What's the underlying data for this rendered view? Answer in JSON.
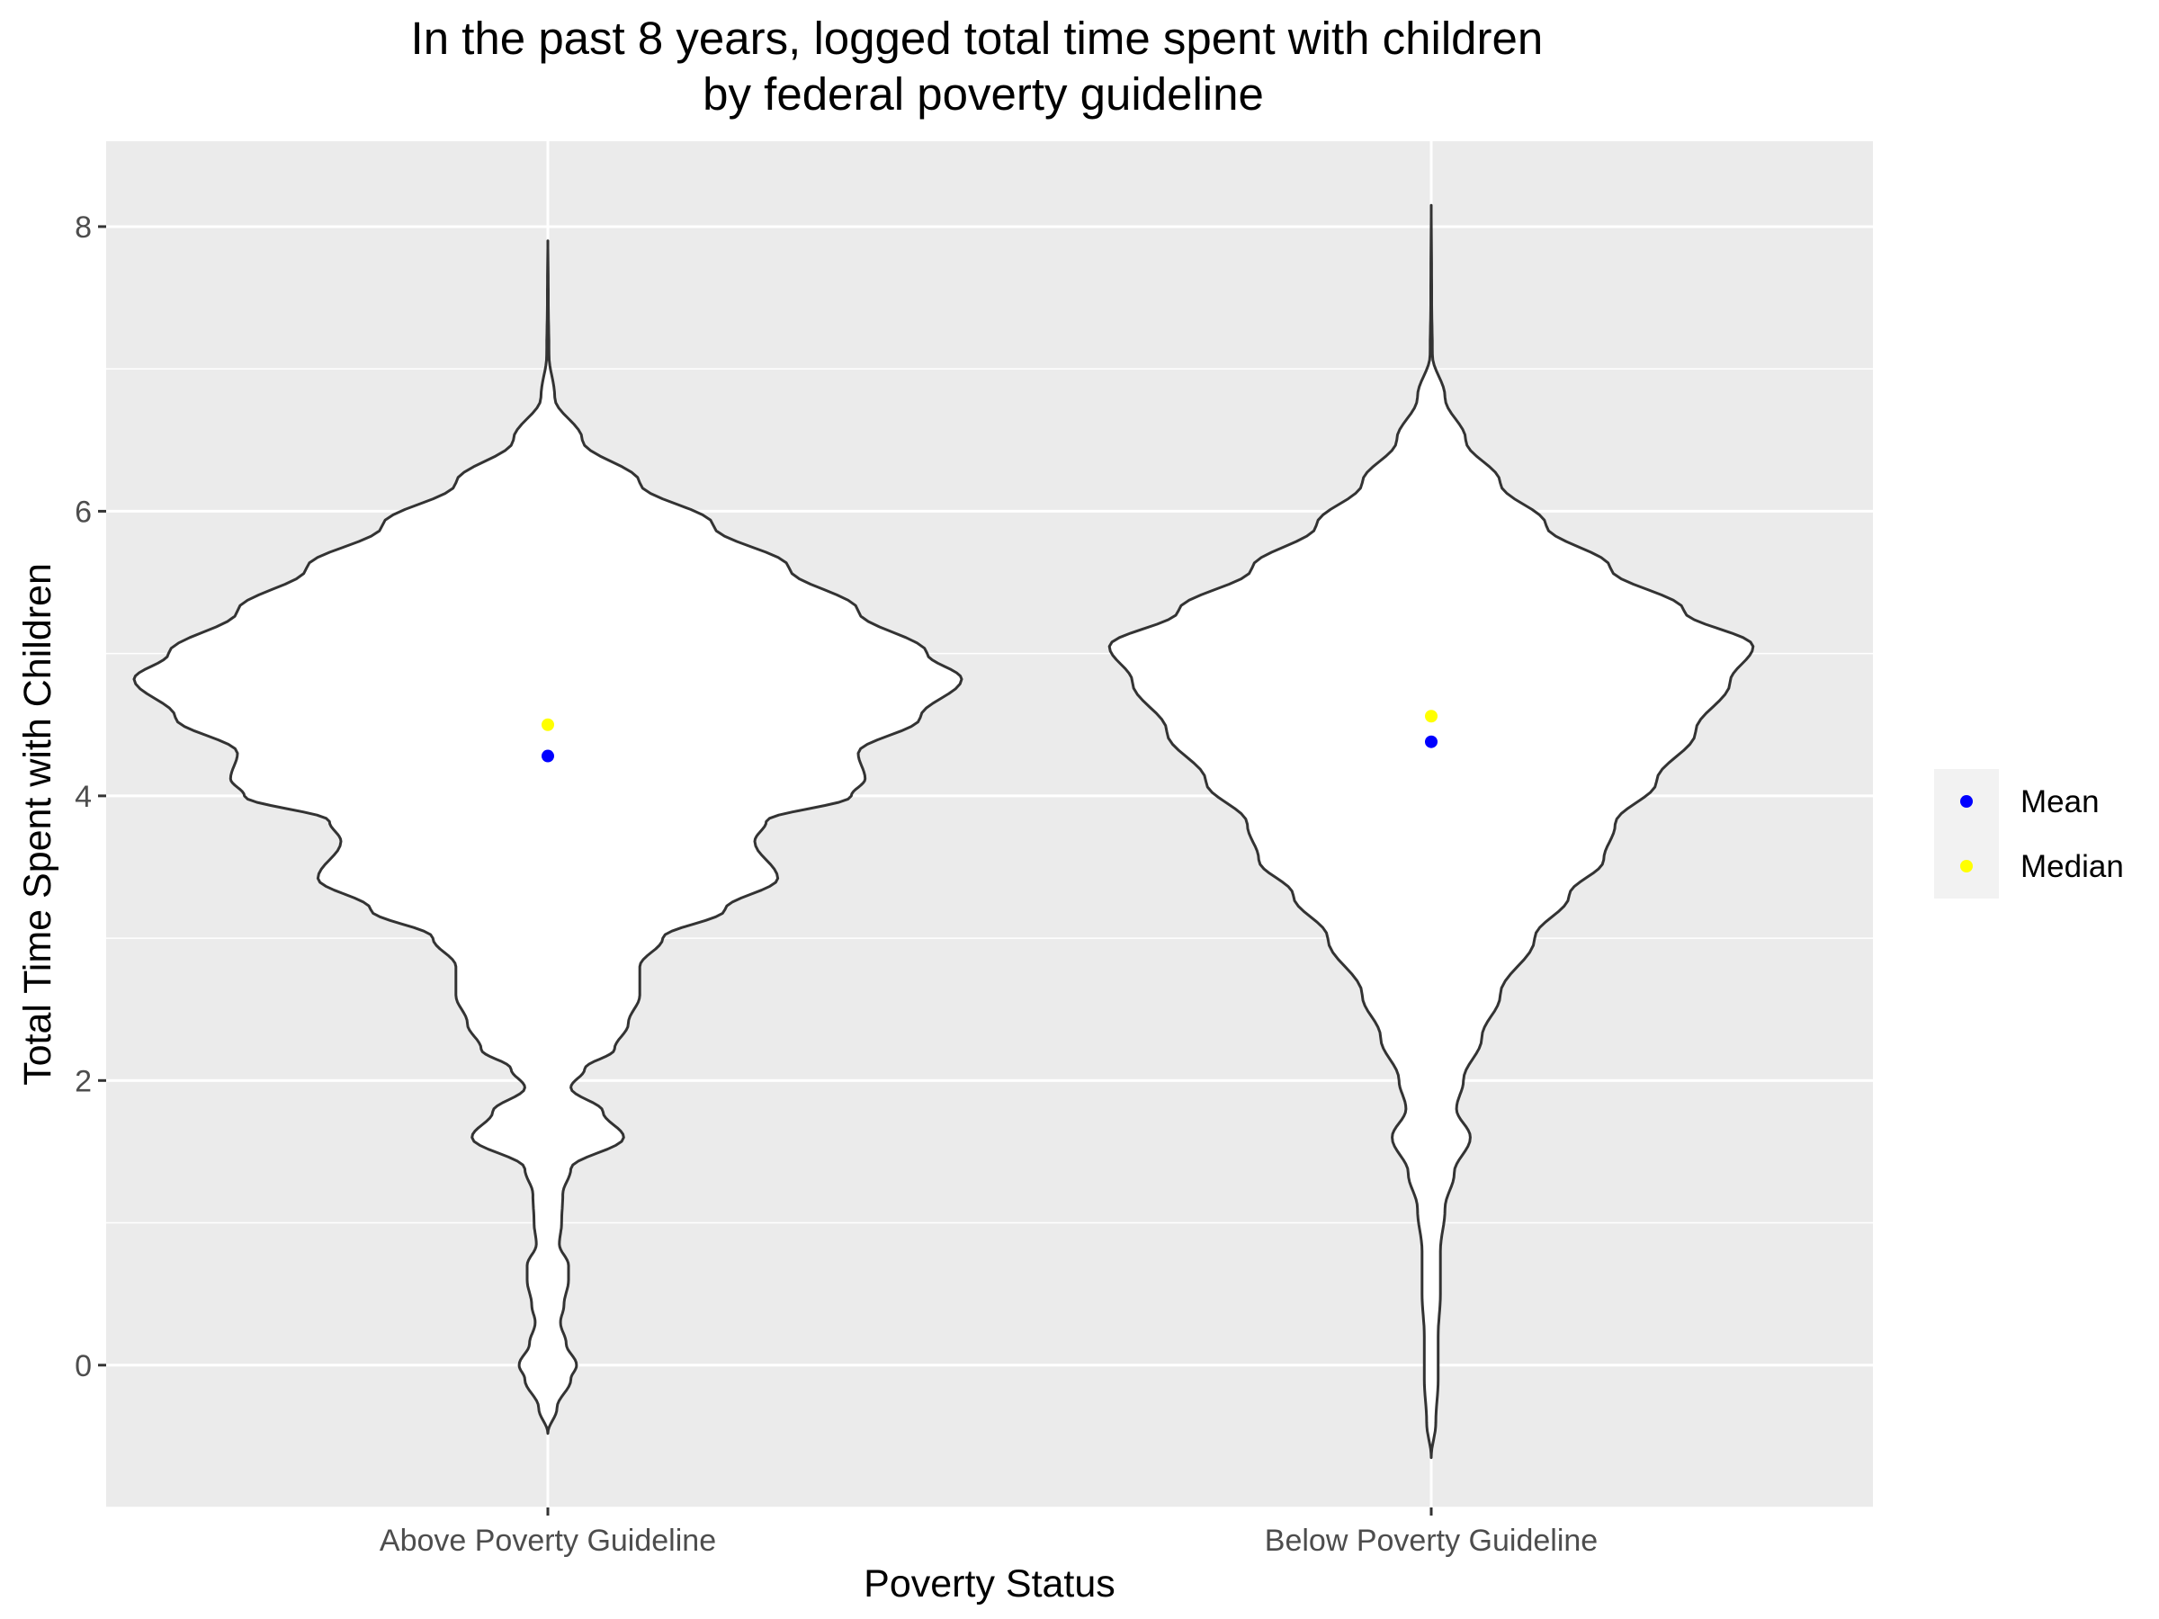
{
  "chart_data": {
    "type": "violin",
    "title": "In the past 8 years, logged total time spent with children\nby federal poverty guideline",
    "xlabel": "Poverty Status",
    "ylabel": "Total Time Spent with Children",
    "categories": [
      "Above Poverty Guideline",
      "Below Poverty Guideline"
    ],
    "ylim": [
      -1.0,
      8.6
    ],
    "yticks": [
      0,
      2,
      4,
      6,
      8
    ],
    "grid": true,
    "legend_position": "right",
    "colors": {
      "panel": "#ebebeb",
      "grid": "#ffffff",
      "violin_fill": "#ffffff",
      "violin_outline": "#333333",
      "mean": "#0000ff",
      "median": "#ffff00"
    },
    "summary_points": [
      {
        "name": "Mean",
        "values": [
          4.28,
          4.38
        ]
      },
      {
        "name": "Median",
        "values": [
          4.5,
          4.56
        ]
      }
    ],
    "density": [
      {
        "category": "Above Poverty Guideline",
        "profile": [
          [
            -0.48,
            0.0
          ],
          [
            -0.3,
            0.04
          ],
          [
            -0.1,
            0.1
          ],
          [
            0.0,
            0.125
          ],
          [
            0.15,
            0.08
          ],
          [
            0.3,
            0.055
          ],
          [
            0.42,
            0.07
          ],
          [
            0.6,
            0.09
          ],
          [
            0.7,
            0.09
          ],
          [
            0.85,
            0.05
          ],
          [
            1.0,
            0.06
          ],
          [
            1.2,
            0.065
          ],
          [
            1.38,
            0.1
          ],
          [
            1.6,
            0.33
          ],
          [
            1.78,
            0.24
          ],
          [
            1.95,
            0.1
          ],
          [
            2.08,
            0.16
          ],
          [
            2.22,
            0.29
          ],
          [
            2.4,
            0.35
          ],
          [
            2.6,
            0.4
          ],
          [
            2.8,
            0.4
          ],
          [
            3.0,
            0.5
          ],
          [
            3.2,
            0.77
          ],
          [
            3.42,
            1.0
          ],
          [
            3.68,
            0.9
          ],
          [
            3.82,
            0.95
          ],
          [
            4.0,
            1.32
          ],
          [
            4.12,
            1.38
          ],
          [
            4.3,
            1.35
          ],
          [
            4.55,
            1.62
          ],
          [
            4.82,
            1.8
          ],
          [
            5.0,
            1.65
          ],
          [
            5.3,
            1.35
          ],
          [
            5.6,
            1.05
          ],
          [
            5.9,
            0.72
          ],
          [
            6.2,
            0.4
          ],
          [
            6.5,
            0.15
          ],
          [
            6.8,
            0.03
          ],
          [
            7.1,
            0.005
          ],
          [
            7.5,
            0.002
          ],
          [
            7.9,
            0.0
          ]
        ]
      },
      {
        "category": "Below Poverty Guideline",
        "profile": [
          [
            -0.65,
            0.0
          ],
          [
            -0.4,
            0.02
          ],
          [
            -0.1,
            0.03
          ],
          [
            0.2,
            0.03
          ],
          [
            0.5,
            0.04
          ],
          [
            0.8,
            0.04
          ],
          [
            1.1,
            0.06
          ],
          [
            1.35,
            0.1
          ],
          [
            1.6,
            0.17
          ],
          [
            1.8,
            0.11
          ],
          [
            2.0,
            0.14
          ],
          [
            2.3,
            0.22
          ],
          [
            2.6,
            0.3
          ],
          [
            3.0,
            0.45
          ],
          [
            3.3,
            0.6
          ],
          [
            3.55,
            0.75
          ],
          [
            3.8,
            0.8
          ],
          [
            4.1,
            0.98
          ],
          [
            4.45,
            1.15
          ],
          [
            4.8,
            1.3
          ],
          [
            5.05,
            1.4
          ],
          [
            5.3,
            1.1
          ],
          [
            5.6,
            0.78
          ],
          [
            5.9,
            0.5
          ],
          [
            6.2,
            0.3
          ],
          [
            6.5,
            0.15
          ],
          [
            6.8,
            0.06
          ],
          [
            7.1,
            0.005
          ],
          [
            7.5,
            0.002
          ],
          [
            8.15,
            0.0
          ]
        ]
      }
    ]
  }
}
